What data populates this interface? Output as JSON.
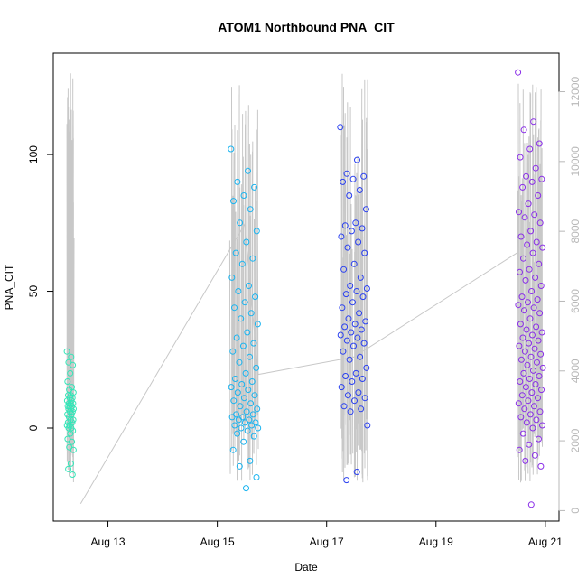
{
  "chart_data": {
    "type": "scatter",
    "title": "ATOM1 Northbound PNA_CIT",
    "xlabel": "Date",
    "ylabel": "PNA_CIT",
    "x_ticks": [
      "Aug 13",
      "Aug 15",
      "Aug 17",
      "Aug 19",
      "Aug 21"
    ],
    "y_ticks": [
      "0",
      "50",
      "100"
    ],
    "y2_ticks": [
      "0",
      "2000",
      "4000",
      "6000",
      "8000",
      "10000",
      "12000"
    ],
    "xlim": [
      "2023-08-12T00:00",
      "2023-08-21T06:00"
    ],
    "ylim": [
      -34,
      137
    ],
    "y2lim": [
      -300,
      13100
    ],
    "grid": false,
    "colors": {
      "secondary_line": "#c8c8c8",
      "cluster_1": "#33e6b8",
      "cluster_2": "#1ab4f0",
      "cluster_3": "#2a40f0",
      "cluster_4": "#8a2ee8",
      "secondary_axis": "#b8b8b8"
    },
    "series": [
      {
        "type": "scatter",
        "clusters": [
          {
            "date_start": "2023-08-12T06:00",
            "date_end": "2023-08-12T09:00",
            "color": "#33e6b8",
            "y": [
              28,
              26,
              24,
              23,
              20,
              17,
              15,
              14,
              13,
              12,
              12,
              11,
              11,
              10,
              10,
              9,
              9,
              9,
              8,
              8,
              8,
              7,
              7,
              7,
              6,
              6,
              5,
              5,
              4,
              3,
              3,
              2,
              2,
              1,
              1,
              0,
              0,
              -1,
              -2,
              -4,
              -5,
              -7,
              -8,
              -13,
              -15,
              -17
            ]
          },
          {
            "date_start": "2023-08-15T06:00",
            "date_end": "2023-08-15T18:00",
            "color": "#1ab4f0",
            "y": [
              102,
              94,
              90,
              88,
              85,
              83,
              80,
              75,
              72,
              68,
              64,
              62,
              60,
              55,
              52,
              50,
              48,
              46,
              44,
              42,
              40,
              38,
              35,
              33,
              31,
              30,
              28,
              26,
              24,
              22,
              20,
              18,
              17,
              16,
              15,
              14,
              13,
              12,
              11,
              10,
              9,
              8,
              7,
              6,
              5,
              5,
              4,
              4,
              3,
              3,
              2,
              2,
              1,
              1,
              0,
              0,
              -1,
              -2,
              -3,
              -5,
              -8,
              -12,
              -14,
              -18,
              -22
            ]
          },
          {
            "date_start": "2023-08-17T06:00",
            "date_end": "2023-08-17T18:00",
            "color": "#2a40f0",
            "y": [
              110,
              98,
              93,
              92,
              91,
              90,
              87,
              85,
              80,
              75,
              74,
              73,
              72,
              70,
              68,
              66,
              64,
              60,
              58,
              55,
              52,
              51,
              50,
              49,
              48,
              46,
              44,
              42,
              40,
              39,
              38,
              37,
              36,
              35,
              34,
              33,
              32,
              31,
              30,
              28,
              26,
              25,
              22,
              20,
              19,
              18,
              17,
              15,
              13,
              12,
              11,
              10,
              8,
              7,
              6,
              1,
              -16,
              -19
            ]
          },
          {
            "date_start": "2023-08-20T12:00",
            "date_end": "2023-08-20T23:00",
            "color": "#8a2ee8",
            "y": [
              130,
              112,
              109,
              104,
              102,
              99,
              95,
              92,
              91,
              90,
              88,
              85,
              82,
              79,
              78,
              77,
              75,
              72,
              70,
              68,
              67,
              66,
              64,
              62,
              60,
              58,
              57,
              55,
              54,
              52,
              50,
              48,
              47,
              46,
              45,
              44,
              43,
              42,
              40,
              38,
              37,
              36,
              35,
              34,
              33,
              32,
              31,
              30,
              29,
              28,
              27,
              26,
              25,
              24,
              23,
              22,
              21,
              20,
              19,
              18,
              17,
              16,
              15,
              14,
              13,
              12,
              11,
              10,
              9,
              8,
              7,
              6,
              5,
              4,
              3,
              2,
              1,
              0,
              -2,
              -4,
              -6,
              -8,
              -10,
              -12,
              -14,
              -28
            ]
          }
        ]
      },
      {
        "type": "line",
        "axis": "right",
        "color": "#c8c8c8",
        "note_points": [
          {
            "x": "2023-08-12T12:00",
            "y2": 200
          },
          {
            "x": "2023-08-15T12:00",
            "y2": 8200
          },
          {
            "x": "2023-08-15T18:00",
            "y2": 3900
          },
          {
            "x": "2023-08-17T12:00",
            "y2": 4400
          },
          {
            "x": "2023-08-20T12:00",
            "y2": 7400
          }
        ]
      }
    ]
  }
}
